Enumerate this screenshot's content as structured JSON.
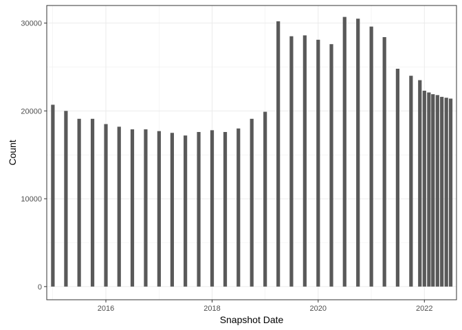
{
  "chart_data": {
    "type": "bar",
    "xlabel": "Snapshot Date",
    "ylabel": "Count",
    "x_axis_kind": "date",
    "xlim": [
      "2014-11-20",
      "2022-08-10"
    ],
    "ylim": [
      -1500,
      32000
    ],
    "x_ticks": [
      {
        "label": "2016",
        "date": "2016-01-01"
      },
      {
        "label": "2018",
        "date": "2018-01-01"
      },
      {
        "label": "2020",
        "date": "2020-01-01"
      },
      {
        "label": "2022",
        "date": "2022-01-01"
      }
    ],
    "y_ticks": [
      {
        "label": "0",
        "value": 0
      },
      {
        "label": "10000",
        "value": 10000
      },
      {
        "label": "20000",
        "value": 20000
      },
      {
        "label": "30000",
        "value": 30000
      }
    ],
    "grid": true,
    "bar_color": "#595959",
    "points": [
      {
        "date": "2015-01-01",
        "value": 20700
      },
      {
        "date": "2015-04-01",
        "value": 20000
      },
      {
        "date": "2015-07-01",
        "value": 19100
      },
      {
        "date": "2015-10-01",
        "value": 19100
      },
      {
        "date": "2016-01-01",
        "value": 18500
      },
      {
        "date": "2016-04-01",
        "value": 18200
      },
      {
        "date": "2016-07-01",
        "value": 17900
      },
      {
        "date": "2016-10-01",
        "value": 17900
      },
      {
        "date": "2017-01-01",
        "value": 17700
      },
      {
        "date": "2017-04-01",
        "value": 17500
      },
      {
        "date": "2017-07-01",
        "value": 17200
      },
      {
        "date": "2017-10-01",
        "value": 17600
      },
      {
        "date": "2018-01-01",
        "value": 17800
      },
      {
        "date": "2018-04-01",
        "value": 17600
      },
      {
        "date": "2018-07-01",
        "value": 18000
      },
      {
        "date": "2018-10-01",
        "value": 19100
      },
      {
        "date": "2019-01-01",
        "value": 19900
      },
      {
        "date": "2019-04-01",
        "value": 30200
      },
      {
        "date": "2019-07-01",
        "value": 28500
      },
      {
        "date": "2019-10-01",
        "value": 28600
      },
      {
        "date": "2020-01-01",
        "value": 28100
      },
      {
        "date": "2020-04-01",
        "value": 27600
      },
      {
        "date": "2020-07-01",
        "value": 30700
      },
      {
        "date": "2020-10-01",
        "value": 30500
      },
      {
        "date": "2021-01-01",
        "value": 29600
      },
      {
        "date": "2021-04-01",
        "value": 28400
      },
      {
        "date": "2021-07-01",
        "value": 24800
      },
      {
        "date": "2021-10-01",
        "value": 24000
      },
      {
        "date": "2021-12-01",
        "value": 23500
      },
      {
        "date": "2022-01-01",
        "value": 22300
      },
      {
        "date": "2022-02-01",
        "value": 22100
      },
      {
        "date": "2022-03-01",
        "value": 21900
      },
      {
        "date": "2022-04-01",
        "value": 21800
      },
      {
        "date": "2022-05-01",
        "value": 21600
      },
      {
        "date": "2022-06-01",
        "value": 21500
      },
      {
        "date": "2022-07-01",
        "value": 21400
      }
    ]
  }
}
